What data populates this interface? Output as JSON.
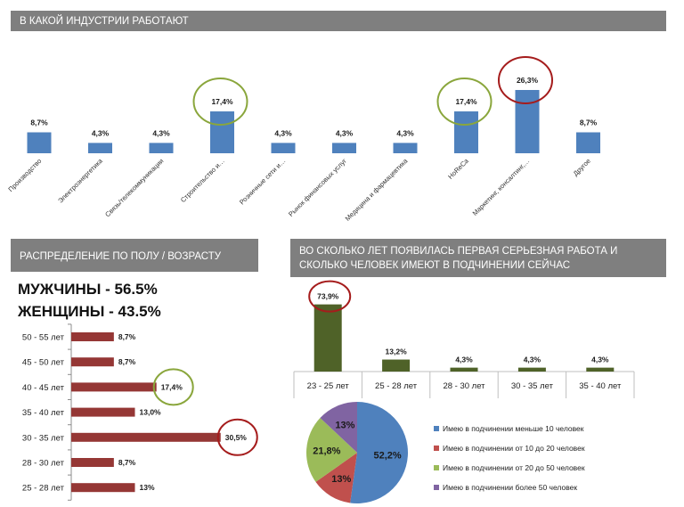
{
  "headers": {
    "industry": "В КАКОЙ ИНДУСТРИИ РАБОТАЮТ",
    "gender_age": "РАСПРЕДЕЛЕНИЕ ПО ПОЛУ / ВОЗРАСТУ",
    "first_job": [
      "ВО СКОЛЬКО ЛЕТ ПОЯВИЛАСЬ ПЕРВАЯ СЕРЬЕЗНАЯ РАБОТА И",
      "СКОЛЬКО ЧЕЛОВЕК ИМЕЮТ В ПОДЧИНЕНИИ СЕЙЧАС"
    ]
  },
  "gender": {
    "men": "МУЖЧИНЫ - 56.5%",
    "women": "ЖЕНЩИНЫ - 43.5%"
  },
  "colors": {
    "header_bg": "#7f7f7f",
    "header_text": "#ffffff",
    "industry_bar": "#4f81bd",
    "age_bar": "#953735",
    "first_job_bar": "#4f6228",
    "green": "#8aa63c",
    "red": "#a51c1c"
  },
  "chart_data": [
    {
      "type": "bar",
      "categories": [
        "Производство",
        "Электроэнергетика",
        "Связь/телекоммуникации",
        "Строительство и…",
        "Розничные сети и…",
        "Рынок финансовых услуг",
        "Медицина и фармацевтика",
        "HoReCa",
        "Маркетинг, консалтинг,…",
        "Другое"
      ],
      "values": [
        8.7,
        4.3,
        4.3,
        17.4,
        4.3,
        4.3,
        4.3,
        17.4,
        26.3,
        8.7
      ],
      "value_labels": [
        "8,7%",
        "4,3%",
        "4,3%",
        "17,4%",
        "4,3%",
        "4,3%",
        "4,3%",
        "17,4%",
        "26,3%",
        "8,7%"
      ],
      "highlights": [
        {
          "category": "Строительство и…",
          "color": "green"
        },
        {
          "category": "HoReCa",
          "color": "green"
        },
        {
          "category": "Маркетинг, консалтинг,…",
          "color": "red"
        }
      ],
      "grid": false
    },
    {
      "type": "bar",
      "orientation": "horizontal",
      "categories": [
        "50 - 55 лет",
        "45 - 50 лет",
        "40 - 45 лет",
        "35 - 40 лет",
        "30 - 35 лет",
        "28 - 30 лет",
        "25 - 28 лет"
      ],
      "values": [
        8.7,
        8.7,
        17.4,
        13.0,
        30.5,
        8.7,
        13
      ],
      "value_labels": [
        "8,7%",
        "8,7%",
        "17,4%",
        "13,0%",
        "30,5%",
        "8,7%",
        "13%"
      ],
      "highlights": [
        {
          "category": "40 - 45 лет",
          "color": "green"
        },
        {
          "category": "30 - 35 лет",
          "color": "red"
        }
      ],
      "grid": false
    },
    {
      "type": "bar",
      "categories": [
        "23 - 25 лет",
        "25 - 28 лет",
        "28 - 30 лет",
        "30 - 35 лет",
        "35 - 40 лет"
      ],
      "values": [
        73.9,
        13.2,
        4.3,
        4.3,
        4.3
      ],
      "value_labels": [
        "73,9%",
        "13,2%",
        "4,3%",
        "4,3%",
        "4,3%"
      ],
      "highlights": [
        {
          "category": "23 - 25 лет",
          "color": "red"
        }
      ],
      "grid": false
    },
    {
      "type": "pie",
      "slices": [
        {
          "name": "Имею в подчинении меньше 10 человек",
          "value": 52.2,
          "label": "52,2%",
          "color": "#4f81bd"
        },
        {
          "name": "Имею в подчинении от 10 до 20 человек",
          "value": 13,
          "label": "13%",
          "color": "#c0504d"
        },
        {
          "name": "Имею в подчинении от 20 до 50 человек",
          "value": 21.8,
          "label": "21,8%",
          "color": "#9bbb59"
        },
        {
          "name": "Имею в подчинении более 50 человек",
          "value": 13,
          "label": "13%",
          "color": "#8064a2"
        }
      ],
      "legend": "right"
    }
  ]
}
